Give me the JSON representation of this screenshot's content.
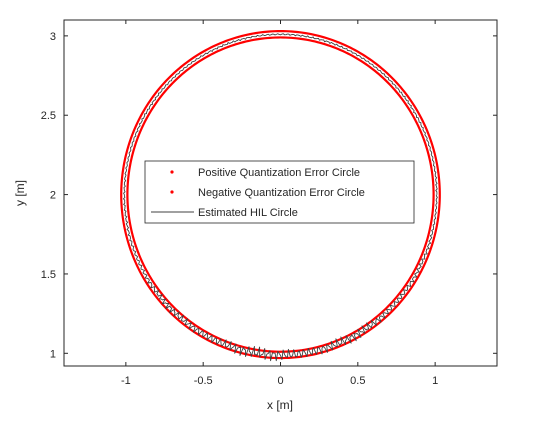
{
  "chart_data": {
    "type": "line",
    "xlabel": "x [m]",
    "ylabel": "y [m]",
    "xlim": [
      -1.4,
      1.4
    ],
    "ylim": [
      0.92,
      3.1
    ],
    "xticks": [
      -1,
      -0.5,
      0,
      0.5,
      1
    ],
    "xtick_labels": [
      "-1",
      "-0.5",
      "0",
      "0.5",
      "1"
    ],
    "yticks": [
      1,
      1.5,
      2,
      2.5,
      3
    ],
    "ytick_labels": [
      "1",
      "1.5",
      "2",
      "2.5",
      "3"
    ],
    "grid": false,
    "legend_position": "center",
    "series": [
      {
        "name": "Positive Quantization Error Circle",
        "shape": "circle",
        "center": [
          0.0,
          2.0
        ],
        "radius": 1.03,
        "color": "#ff0000",
        "style": "dots"
      },
      {
        "name": "Negative Quantization Error Circle",
        "shape": "circle",
        "center": [
          0.0,
          2.0
        ],
        "radius": 0.99,
        "color": "#ff0000",
        "style": "dots"
      },
      {
        "name": "Estimated HIL Circle",
        "shape": "noisy-circle",
        "center": [
          0.0,
          2.0
        ],
        "radius": 1.01,
        "color": "#404040",
        "style": "line"
      }
    ]
  }
}
